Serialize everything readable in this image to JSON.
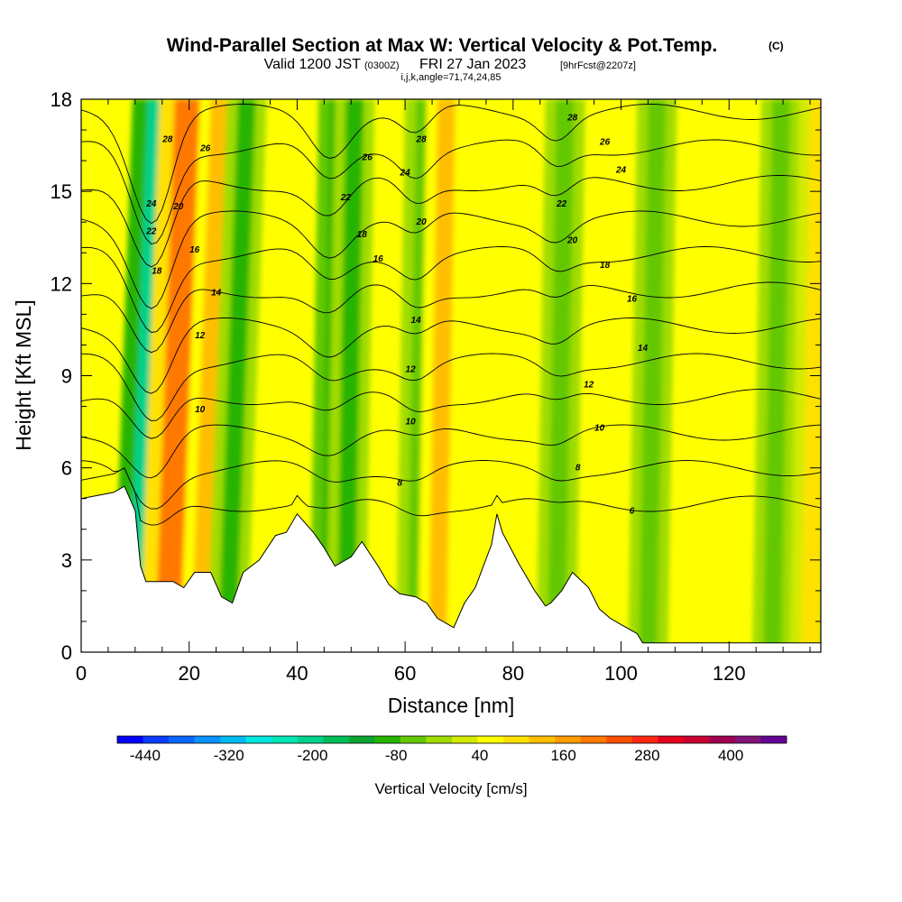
{
  "title": {
    "main": "Wind-Parallel Section at Max W: Vertical Velocity & Pot.Temp.",
    "badge": "(C)",
    "valid_prefix": "Valid 1200 JST",
    "utc": "(0300Z)",
    "date": "FRI 27 Jan 2023",
    "fcst": "[9hrFcst@2207z]",
    "params": "i,j,k,angle=71,74,24,85"
  },
  "chart_data": {
    "type": "heatmap",
    "xlabel": "Distance [nm]",
    "ylabel": "Height [Kft MSL]",
    "xlim": [
      0,
      137
    ],
    "ylim": [
      0,
      18
    ],
    "xticks": [
      0,
      20,
      40,
      60,
      80,
      100,
      120
    ],
    "yticks": [
      0,
      3,
      6,
      9,
      12,
      15,
      18
    ],
    "colorbar": {
      "label": "Vertical Velocity [cm/s]",
      "ticks": [
        -440,
        -320,
        -200,
        -80,
        40,
        160,
        280,
        400
      ],
      "range": [
        -480,
        480
      ],
      "colors": [
        "#0000ff",
        "#0a3cff",
        "#0b66ff",
        "#0891ff",
        "#00bcf2",
        "#00e6e0",
        "#00e6b4",
        "#00d28c",
        "#00be5a",
        "#0ca532",
        "#28b400",
        "#64c800",
        "#a0dc00",
        "#d2eb00",
        "#ffff00",
        "#ffe100",
        "#ffbe00",
        "#ff9b00",
        "#ff7800",
        "#ff5000",
        "#ff2814",
        "#e6001e",
        "#c80032",
        "#a00050",
        "#821478",
        "#640096"
      ]
    },
    "vertical_velocity_features": [
      {
        "x": 11,
        "w": -200,
        "note": "downdraft band"
      },
      {
        "x": 16,
        "w": 200,
        "note": "updraft band"
      },
      {
        "x": 22,
        "w": 120,
        "note": "updraft band"
      },
      {
        "x": 27,
        "w": -80
      },
      {
        "x": 46,
        "w": -100
      },
      {
        "x": 49,
        "w": -80
      },
      {
        "x": 62,
        "w": -60
      },
      {
        "x": 66,
        "w": 120
      },
      {
        "x": 88,
        "w": -60
      },
      {
        "x": 105,
        "w": -40
      },
      {
        "x": 128,
        "w": -40
      },
      {
        "x": 135,
        "w": 80
      }
    ],
    "terrain": [
      [
        0,
        5
      ],
      [
        6,
        5.2
      ],
      [
        8,
        5.4
      ],
      [
        10,
        4.6
      ],
      [
        11,
        2.8
      ],
      [
        12,
        2.3
      ],
      [
        17,
        2.3
      ],
      [
        19,
        2.1
      ],
      [
        21,
        2.6
      ],
      [
        24,
        2.6
      ],
      [
        26,
        1.8
      ],
      [
        28,
        1.6
      ],
      [
        30,
        2.6
      ],
      [
        33,
        3
      ],
      [
        36,
        3.8
      ],
      [
        38,
        3.9
      ],
      [
        40,
        4.5
      ],
      [
        43,
        3.9
      ],
      [
        45,
        3.4
      ],
      [
        47,
        2.8
      ],
      [
        50,
        3.1
      ],
      [
        52,
        3.6
      ],
      [
        55,
        2.8
      ],
      [
        57,
        2.2
      ],
      [
        59,
        1.9
      ],
      [
        62,
        1.8
      ],
      [
        64,
        1.6
      ],
      [
        66,
        1.1
      ],
      [
        69,
        0.8
      ],
      [
        71,
        1.6
      ],
      [
        73,
        2.1
      ],
      [
        76,
        3.5
      ],
      [
        77,
        4.5
      ],
      [
        78,
        3.9
      ],
      [
        81,
        2.9
      ],
      [
        84,
        2
      ],
      [
        86,
        1.5
      ],
      [
        87,
        1.6
      ],
      [
        89,
        2
      ],
      [
        91,
        2.6
      ],
      [
        94,
        2.1
      ],
      [
        96,
        1.4
      ],
      [
        98,
        1.1
      ],
      [
        100,
        0.9
      ],
      [
        103,
        0.6
      ],
      [
        104,
        0.3
      ],
      [
        137,
        0.3
      ]
    ],
    "theta_contour_labels": [
      {
        "value": 28,
        "x": 16,
        "y": 16.7
      },
      {
        "value": 26,
        "x": 23,
        "y": 16.4
      },
      {
        "value": 24,
        "x": 13,
        "y": 14.6
      },
      {
        "value": 22,
        "x": 13,
        "y": 13.7
      },
      {
        "value": 20,
        "x": 18,
        "y": 14.5
      },
      {
        "value": 18,
        "x": 14,
        "y": 12.4
      },
      {
        "value": 16,
        "x": 21,
        "y": 13.1
      },
      {
        "value": 14,
        "x": 25,
        "y": 11.7
      },
      {
        "value": 12,
        "x": 22,
        "y": 10.3
      },
      {
        "value": 10,
        "x": 22,
        "y": 7.9
      },
      {
        "value": 26,
        "x": 53,
        "y": 16.1
      },
      {
        "value": 28,
        "x": 63,
        "y": 16.7
      },
      {
        "value": 24,
        "x": 60,
        "y": 15.6
      },
      {
        "value": 22,
        "x": 49,
        "y": 14.8
      },
      {
        "value": 18,
        "x": 52,
        "y": 13.6
      },
      {
        "value": 20,
        "x": 63,
        "y": 14
      },
      {
        "value": 16,
        "x": 55,
        "y": 12.8
      },
      {
        "value": 14,
        "x": 62,
        "y": 10.8
      },
      {
        "value": 12,
        "x": 61,
        "y": 9.2
      },
      {
        "value": 10,
        "x": 61,
        "y": 7.5
      },
      {
        "value": 8,
        "x": 59,
        "y": 5.5
      },
      {
        "value": 28,
        "x": 91,
        "y": 17.4
      },
      {
        "value": 26,
        "x": 97,
        "y": 16.6
      },
      {
        "value": 24,
        "x": 100,
        "y": 15.7
      },
      {
        "value": 22,
        "x": 89,
        "y": 14.6
      },
      {
        "value": 20,
        "x": 91,
        "y": 13.4
      },
      {
        "value": 18,
        "x": 97,
        "y": 12.6
      },
      {
        "value": 16,
        "x": 102,
        "y": 11.5
      },
      {
        "value": 14,
        "x": 104,
        "y": 9.9
      },
      {
        "value": 12,
        "x": 94,
        "y": 8.7
      },
      {
        "value": 10,
        "x": 96,
        "y": 7.3
      },
      {
        "value": 8,
        "x": 92,
        "y": 6
      },
      {
        "value": 6,
        "x": 102,
        "y": 4.6
      }
    ]
  }
}
